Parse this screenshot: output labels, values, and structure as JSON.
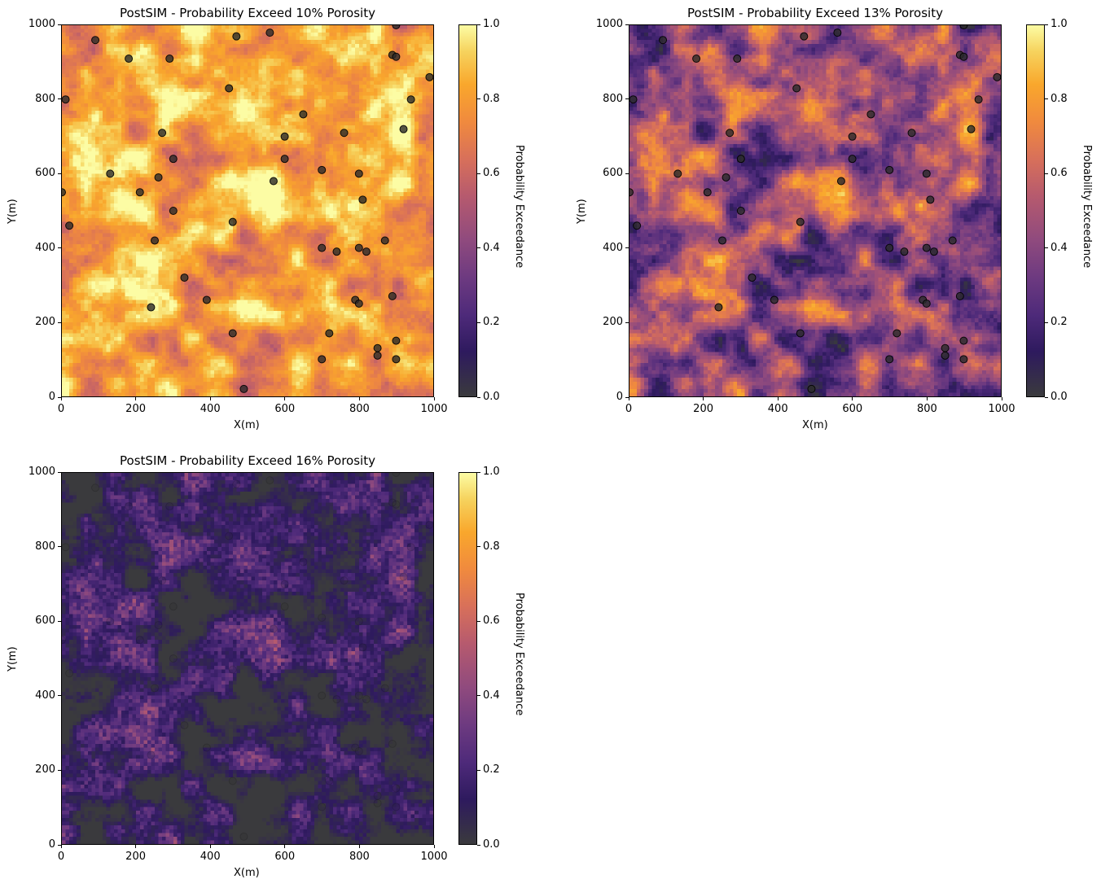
{
  "figure": {
    "panels": [
      {
        "title": "PostSIM - Probability Exceed 10% Porosity",
        "xlabel": "X(m)",
        "ylabel": "Y(m)",
        "colorbar_label": "Probability Exceedance"
      },
      {
        "title": "PostSIM - Probability Exceed 13% Porosity",
        "xlabel": "X(m)",
        "ylabel": "Y(m)",
        "colorbar_label": "Probability Exceedance"
      },
      {
        "title": "PostSIM - Probability Exceed 16% Porosity",
        "xlabel": "X(m)",
        "ylabel": "Y(m)",
        "colorbar_label": "Probability Exceedance"
      }
    ],
    "axis_ticks": [
      "0",
      "200",
      "400",
      "600",
      "800",
      "1000"
    ],
    "colorbar_ticks": [
      "0.0",
      "0.2",
      "0.4",
      "0.6",
      "0.8",
      "1.0"
    ]
  },
  "chart_data": [
    {
      "type": "heatmap",
      "title": "PostSIM - Probability Exceed 10% Porosity",
      "xlabel": "X(m)",
      "ylabel": "Y(m)",
      "xlim": [
        0,
        1000
      ],
      "ylim": [
        0,
        1000
      ],
      "colorbar": {
        "label": "Probability Exceedance",
        "range": [
          0.0,
          1.0
        ],
        "colormap": "inferno"
      },
      "grid_cells": [
        100,
        100
      ],
      "mean_probability": 0.82,
      "grid": false
    },
    {
      "type": "heatmap",
      "title": "PostSIM - Probability Exceed 13% Porosity",
      "xlabel": "X(m)",
      "ylabel": "Y(m)",
      "xlim": [
        0,
        1000
      ],
      "ylim": [
        0,
        1000
      ],
      "colorbar": {
        "label": "Probability Exceedance",
        "range": [
          0.0,
          1.0
        ],
        "colormap": "inferno"
      },
      "grid_cells": [
        100,
        100
      ],
      "mean_probability": 0.45,
      "grid": false
    },
    {
      "type": "heatmap",
      "title": "PostSIM - Probability Exceed 16% Porosity",
      "xlabel": "X(m)",
      "ylabel": "Y(m)",
      "xlim": [
        0,
        1000
      ],
      "ylim": [
        0,
        1000
      ],
      "colorbar": {
        "label": "Probability Exceedance",
        "range": [
          0.0,
          1.0
        ],
        "colormap": "inferno"
      },
      "grid_cells": [
        100,
        100
      ],
      "mean_probability": 0.12,
      "grid": false
    }
  ],
  "wells": [
    [
      90,
      960
    ],
    [
      180,
      910
    ],
    [
      290,
      910
    ],
    [
      470,
      970
    ],
    [
      560,
      980
    ],
    [
      900,
      1000
    ],
    [
      890,
      920
    ],
    [
      900,
      915
    ],
    [
      990,
      860
    ],
    [
      10,
      800
    ],
    [
      450,
      830
    ],
    [
      650,
      760
    ],
    [
      940,
      800
    ],
    [
      270,
      710
    ],
    [
      600,
      700
    ],
    [
      760,
      710
    ],
    [
      920,
      720
    ],
    [
      300,
      640
    ],
    [
      600,
      640
    ],
    [
      130,
      600
    ],
    [
      260,
      590
    ],
    [
      570,
      580
    ],
    [
      700,
      610
    ],
    [
      800,
      600
    ],
    [
      210,
      550
    ],
    [
      0,
      550
    ],
    [
      810,
      530
    ],
    [
      300,
      500
    ],
    [
      20,
      460
    ],
    [
      460,
      470
    ],
    [
      250,
      420
    ],
    [
      700,
      400
    ],
    [
      740,
      390
    ],
    [
      800,
      400
    ],
    [
      820,
      390
    ],
    [
      870,
      420
    ],
    [
      330,
      320
    ],
    [
      390,
      260
    ],
    [
      790,
      260
    ],
    [
      800,
      250
    ],
    [
      890,
      270
    ],
    [
      240,
      240
    ],
    [
      720,
      170
    ],
    [
      460,
      170
    ],
    [
      900,
      150
    ],
    [
      850,
      130
    ],
    [
      850,
      110
    ],
    [
      700,
      100
    ],
    [
      900,
      100
    ],
    [
      490,
      20
    ]
  ],
  "colors": {
    "well_marker": "#2b2b2b"
  }
}
